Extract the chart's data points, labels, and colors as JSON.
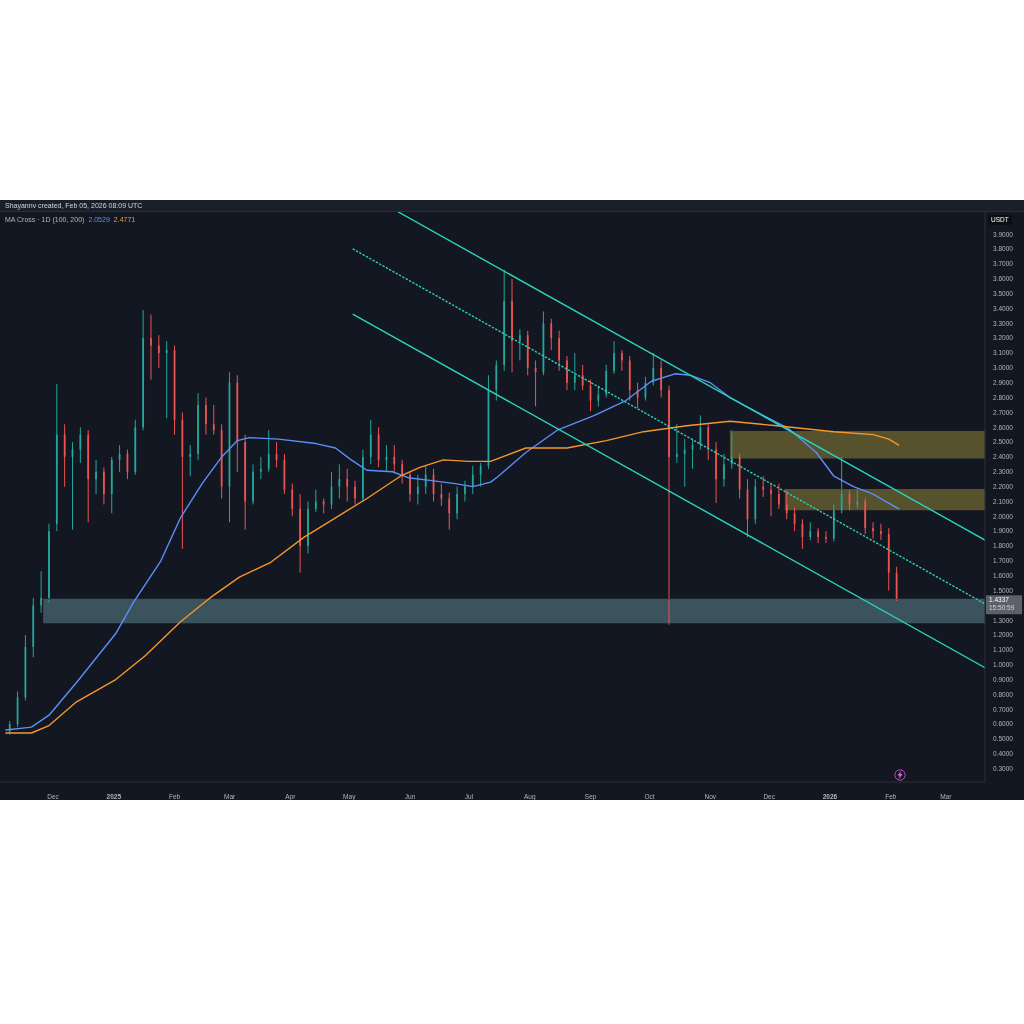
{
  "chart_data": {
    "type": "candlestick",
    "title": "Shayannv created, Feb 05, 2026 08:09 UTC",
    "legend_title": "MA Cross · 1D (100, 200)",
    "legend": "top left",
    "ylabel": "USDT",
    "annotations": [
      "1.4337",
      "15:50:59"
    ],
    "xlim": [
      "2024-11-04",
      "2026-03-21"
    ],
    "xticks": [
      {
        "value": "2024-12-01",
        "label": "Dec"
      },
      {
        "value": "2025-01-01",
        "label": "2025"
      },
      {
        "value": "2025-02-01",
        "label": "Feb"
      },
      {
        "value": "2025-03-01",
        "label": "Mar"
      },
      {
        "value": "2025-04-01",
        "label": "Apr"
      },
      {
        "value": "2025-05-01",
        "label": "May"
      },
      {
        "value": "2025-06-01",
        "label": "Jun"
      },
      {
        "value": "2025-07-01",
        "label": "Jul"
      },
      {
        "value": "2025-08-01",
        "label": "Aug"
      },
      {
        "value": "2025-09-01",
        "label": "Sep"
      },
      {
        "value": "2025-10-01",
        "label": "Oct"
      },
      {
        "value": "2025-11-01",
        "label": "Nov"
      },
      {
        "value": "2025-12-01",
        "label": "Dec"
      },
      {
        "value": "2026-01-01",
        "label": "2026"
      },
      {
        "value": "2026-02-01",
        "label": "Feb"
      },
      {
        "value": "2026-03-01",
        "label": "Mar"
      }
    ],
    "ylim": [
      0.21,
      4.05
    ],
    "yticks": [
      {
        "value": 0.3,
        "label": "0.3000"
      },
      {
        "value": 0.4,
        "label": "0.4000"
      },
      {
        "value": 0.5,
        "label": "0.5000"
      },
      {
        "value": 0.6,
        "label": "0.6000"
      },
      {
        "value": 0.7,
        "label": "0.7000"
      },
      {
        "value": 0.8,
        "label": "0.8000"
      },
      {
        "value": 0.9,
        "label": "0.9000"
      },
      {
        "value": 1.0,
        "label": "1.0000"
      },
      {
        "value": 1.1,
        "label": "1.1000"
      },
      {
        "value": 1.2,
        "label": "1.2000"
      },
      {
        "value": 1.3,
        "label": "1.3000"
      },
      {
        "value": 1.5,
        "label": "1.5000"
      },
      {
        "value": 1.6,
        "label": "1.6000"
      },
      {
        "value": 1.7,
        "label": "1.7000"
      },
      {
        "value": 1.8,
        "label": "1.8000"
      },
      {
        "value": 1.9,
        "label": "1.9000"
      },
      {
        "value": 2.0,
        "label": "2.0000"
      },
      {
        "value": 2.1,
        "label": "2.1000"
      },
      {
        "value": 2.2,
        "label": "2.2000"
      },
      {
        "value": 2.3,
        "label": "2.3000"
      },
      {
        "value": 2.4,
        "label": "2.4000"
      },
      {
        "value": 2.5,
        "label": "2.5000"
      },
      {
        "value": 2.6,
        "label": "2.6000"
      },
      {
        "value": 2.7,
        "label": "2.7000"
      },
      {
        "value": 2.8,
        "label": "2.8000"
      },
      {
        "value": 2.9,
        "label": "2.9000"
      },
      {
        "value": 3.0,
        "label": "3.0000"
      },
      {
        "value": 3.1,
        "label": "3.1000"
      },
      {
        "value": 3.2,
        "label": "3.2000"
      },
      {
        "value": 3.3,
        "label": "3.3000"
      },
      {
        "value": 3.4,
        "label": "3.4000"
      },
      {
        "value": 3.5,
        "label": "3.5000"
      },
      {
        "value": 3.6,
        "label": "3.6000"
      },
      {
        "value": 3.7,
        "label": "3.7000"
      },
      {
        "value": 3.8,
        "label": "3.8000"
      },
      {
        "value": 3.9,
        "label": "3.9000"
      }
    ],
    "x": [
      "2024-11-09",
      "2024-11-13",
      "2024-11-17",
      "2024-11-21",
      "2024-11-25",
      "2024-11-29",
      "2024-12-03",
      "2024-12-07",
      "2024-12-11",
      "2024-12-15",
      "2024-12-19",
      "2024-12-23",
      "2024-12-27",
      "2024-12-31",
      "2025-01-04",
      "2025-01-08",
      "2025-01-12",
      "2025-01-16",
      "2025-01-20",
      "2025-01-24",
      "2025-01-28",
      "2025-02-01",
      "2025-02-05",
      "2025-02-09",
      "2025-02-13",
      "2025-02-17",
      "2025-02-21",
      "2025-02-25",
      "2025-03-01",
      "2025-03-05",
      "2025-03-09",
      "2025-03-13",
      "2025-03-17",
      "2025-03-21",
      "2025-03-25",
      "2025-03-29",
      "2025-04-02",
      "2025-04-06",
      "2025-04-10",
      "2025-04-14",
      "2025-04-18",
      "2025-04-22",
      "2025-04-26",
      "2025-04-30",
      "2025-05-04",
      "2025-05-08",
      "2025-05-12",
      "2025-05-16",
      "2025-05-20",
      "2025-05-24",
      "2025-05-28",
      "2025-06-01",
      "2025-06-05",
      "2025-06-09",
      "2025-06-13",
      "2025-06-17",
      "2025-06-21",
      "2025-06-25",
      "2025-06-29",
      "2025-07-03",
      "2025-07-07",
      "2025-07-11",
      "2025-07-15",
      "2025-07-19",
      "2025-07-23",
      "2025-07-27",
      "2025-07-31",
      "2025-08-04",
      "2025-08-08",
      "2025-08-12",
      "2025-08-16",
      "2025-08-20",
      "2025-08-24",
      "2025-08-28",
      "2025-09-01",
      "2025-09-05",
      "2025-09-09",
      "2025-09-13",
      "2025-09-17",
      "2025-09-21",
      "2025-09-25",
      "2025-09-29",
      "2025-10-03",
      "2025-10-07",
      "2025-10-11",
      "2025-10-15",
      "2025-10-19",
      "2025-10-23",
      "2025-10-27",
      "2025-10-31",
      "2025-11-04",
      "2025-11-08",
      "2025-11-12",
      "2025-11-16",
      "2025-11-20",
      "2025-11-24",
      "2025-11-28",
      "2025-12-02",
      "2025-12-06",
      "2025-12-10",
      "2025-12-14",
      "2025-12-18",
      "2025-12-22",
      "2025-12-26",
      "2025-12-30",
      "2026-01-03",
      "2026-01-07",
      "2026-01-11",
      "2026-01-15",
      "2026-01-19",
      "2026-01-23",
      "2026-01-27",
      "2026-01-31",
      "2026-02-04"
    ],
    "ohlc": [
      [
        0.55,
        0.62,
        0.53,
        0.6
      ],
      [
        0.6,
        0.82,
        0.58,
        0.78
      ],
      [
        0.78,
        1.2,
        0.76,
        1.12
      ],
      [
        1.12,
        1.45,
        1.05,
        1.4
      ],
      [
        1.4,
        1.63,
        1.35,
        1.45
      ],
      [
        1.45,
        1.95,
        1.42,
        1.9
      ],
      [
        1.95,
        2.89,
        1.9,
        2.55
      ],
      [
        2.55,
        2.62,
        2.2,
        2.4
      ],
      [
        2.4,
        2.5,
        1.91,
        2.45
      ],
      [
        2.45,
        2.6,
        2.36,
        2.55
      ],
      [
        2.55,
        2.58,
        1.96,
        2.25
      ],
      [
        2.25,
        2.38,
        2.15,
        2.3
      ],
      [
        2.3,
        2.33,
        2.08,
        2.15
      ],
      [
        2.15,
        2.4,
        2.02,
        2.38
      ],
      [
        2.38,
        2.48,
        2.3,
        2.42
      ],
      [
        2.42,
        2.45,
        2.25,
        2.3
      ],
      [
        2.3,
        2.65,
        2.28,
        2.6
      ],
      [
        2.6,
        3.39,
        2.58,
        3.2
      ],
      [
        3.2,
        3.36,
        2.92,
        3.15
      ],
      [
        3.15,
        3.22,
        3.0,
        3.1
      ],
      [
        3.1,
        3.18,
        2.66,
        3.12
      ],
      [
        3.12,
        3.15,
        2.55,
        2.65
      ],
      [
        2.65,
        2.7,
        1.78,
        2.4
      ],
      [
        2.4,
        2.48,
        2.27,
        2.42
      ],
      [
        2.42,
        2.83,
        2.38,
        2.75
      ],
      [
        2.75,
        2.8,
        2.55,
        2.62
      ],
      [
        2.62,
        2.75,
        2.55,
        2.58
      ],
      [
        2.58,
        2.62,
        2.12,
        2.2
      ],
      [
        2.2,
        2.97,
        1.96,
        2.9
      ],
      [
        2.9,
        2.95,
        2.3,
        2.5
      ],
      [
        2.5,
        2.55,
        1.91,
        2.1
      ],
      [
        2.1,
        2.35,
        2.08,
        2.3
      ],
      [
        2.3,
        2.4,
        2.25,
        2.32
      ],
      [
        2.32,
        2.58,
        2.3,
        2.42
      ],
      [
        2.42,
        2.5,
        2.33,
        2.38
      ],
      [
        2.38,
        2.42,
        2.15,
        2.18
      ],
      [
        2.18,
        2.22,
        2.0,
        2.05
      ],
      [
        2.05,
        2.15,
        1.62,
        1.8
      ],
      [
        1.8,
        2.1,
        1.75,
        2.05
      ],
      [
        2.05,
        2.18,
        2.03,
        2.1
      ],
      [
        2.1,
        2.12,
        2.02,
        2.08
      ],
      [
        2.08,
        2.3,
        2.05,
        2.2
      ],
      [
        2.2,
        2.35,
        2.12,
        2.25
      ],
      [
        2.25,
        2.32,
        2.1,
        2.2
      ],
      [
        2.2,
        2.24,
        2.08,
        2.12
      ],
      [
        2.12,
        2.45,
        2.1,
        2.4
      ],
      [
        2.4,
        2.65,
        2.35,
        2.55
      ],
      [
        2.55,
        2.6,
        2.33,
        2.38
      ],
      [
        2.38,
        2.48,
        2.3,
        2.4
      ],
      [
        2.4,
        2.48,
        2.3,
        2.35
      ],
      [
        2.35,
        2.38,
        2.22,
        2.28
      ],
      [
        2.28,
        2.3,
        2.1,
        2.15
      ],
      [
        2.15,
        2.28,
        2.08,
        2.2
      ],
      [
        2.2,
        2.34,
        2.15,
        2.28
      ],
      [
        2.28,
        2.32,
        2.1,
        2.15
      ],
      [
        2.15,
        2.22,
        2.07,
        2.12
      ],
      [
        2.12,
        2.16,
        1.91,
        2.02
      ],
      [
        2.02,
        2.2,
        1.98,
        2.15
      ],
      [
        2.15,
        2.24,
        2.1,
        2.2
      ],
      [
        2.2,
        2.34,
        2.15,
        2.28
      ],
      [
        2.28,
        2.36,
        2.2,
        2.34
      ],
      [
        2.34,
        2.95,
        2.32,
        2.85
      ],
      [
        2.85,
        3.05,
        2.78,
        3.02
      ],
      [
        3.02,
        3.66,
        2.98,
        3.45
      ],
      [
        3.45,
        3.6,
        2.97,
        3.18
      ],
      [
        3.18,
        3.26,
        3.05,
        3.22
      ],
      [
        3.22,
        3.25,
        2.95,
        3.0
      ],
      [
        3.0,
        3.05,
        2.74,
        2.97
      ],
      [
        2.97,
        3.38,
        2.95,
        3.3
      ],
      [
        3.3,
        3.33,
        3.12,
        3.2
      ],
      [
        3.2,
        3.25,
        2.98,
        3.05
      ],
      [
        3.05,
        3.08,
        2.85,
        2.9
      ],
      [
        2.9,
        3.1,
        2.85,
        2.95
      ],
      [
        2.95,
        3.02,
        2.85,
        2.88
      ],
      [
        2.88,
        2.92,
        2.71,
        2.78
      ],
      [
        2.78,
        2.88,
        2.74,
        2.82
      ],
      [
        2.82,
        3.02,
        2.8,
        2.98
      ],
      [
        2.98,
        3.18,
        2.96,
        3.1
      ],
      [
        3.1,
        3.12,
        2.98,
        3.05
      ],
      [
        3.05,
        3.08,
        2.78,
        2.85
      ],
      [
        2.85,
        2.9,
        2.73,
        2.8
      ],
      [
        2.8,
        2.94,
        2.78,
        2.9
      ],
      [
        2.9,
        3.1,
        2.88,
        3.0
      ],
      [
        3.0,
        3.05,
        2.8,
        2.85
      ],
      [
        2.85,
        2.88,
        1.27,
        2.4
      ],
      [
        2.4,
        2.62,
        2.36,
        2.42
      ],
      [
        2.42,
        2.52,
        2.2,
        2.45
      ],
      [
        2.45,
        2.52,
        2.32,
        2.48
      ],
      [
        2.48,
        2.68,
        2.45,
        2.6
      ],
      [
        2.6,
        2.62,
        2.38,
        2.45
      ],
      [
        2.45,
        2.5,
        2.09,
        2.25
      ],
      [
        2.25,
        2.42,
        2.2,
        2.35
      ],
      [
        2.35,
        2.58,
        2.32,
        2.4
      ],
      [
        2.4,
        2.42,
        2.12,
        2.18
      ],
      [
        2.18,
        2.25,
        1.86,
        1.98
      ],
      [
        1.98,
        2.25,
        1.95,
        2.2
      ],
      [
        2.2,
        2.27,
        2.13,
        2.18
      ],
      [
        2.18,
        2.22,
        2.0,
        2.15
      ],
      [
        2.15,
        2.22,
        2.05,
        2.08
      ],
      [
        2.08,
        2.18,
        1.98,
        2.02
      ],
      [
        2.02,
        2.06,
        1.9,
        1.95
      ],
      [
        1.95,
        1.98,
        1.78,
        1.86
      ],
      [
        1.86,
        1.96,
        1.84,
        1.9
      ],
      [
        1.9,
        1.92,
        1.82,
        1.86
      ],
      [
        1.86,
        1.9,
        1.82,
        1.85
      ],
      [
        1.85,
        2.08,
        1.83,
        2.04
      ],
      [
        2.04,
        2.4,
        2.02,
        2.15
      ],
      [
        2.15,
        2.18,
        2.04,
        2.08
      ],
      [
        2.08,
        2.19,
        2.05,
        2.1
      ],
      [
        2.1,
        2.12,
        1.88,
        1.92
      ],
      [
        1.92,
        1.96,
        1.85,
        1.9
      ],
      [
        1.9,
        1.95,
        1.84,
        1.88
      ],
      [
        1.88,
        1.92,
        1.5,
        1.62
      ],
      [
        1.62,
        1.66,
        1.43,
        1.4337
      ]
    ],
    "colors": [
      "#26a69a",
      "#26a69a",
      "#26a69a",
      "#26a69a",
      "#26a69a",
      "#26a69a",
      "#26a69a",
      "#ef5350",
      "#26a69a",
      "#26a69a",
      "#ef5350",
      "#26a69a",
      "#ef5350",
      "#26a69a",
      "#26a69a",
      "#ef5350",
      "#26a69a",
      "#26a69a",
      "#ef5350",
      "#ef5350",
      "#26a69a",
      "#ef5350",
      "#ef5350",
      "#26a69a",
      "#26a69a",
      "#ef5350",
      "#ef5350",
      "#ef5350",
      "#26a69a",
      "#ef5350",
      "#ef5350",
      "#26a69a",
      "#26a69a",
      "#26a69a",
      "#ef5350",
      "#ef5350",
      "#ef5350",
      "#ef5350",
      "#26a69a",
      "#26a69a",
      "#ef5350",
      "#26a69a",
      "#26a69a",
      "#ef5350",
      "#ef5350",
      "#26a69a",
      "#26a69a",
      "#ef5350",
      "#26a69a",
      "#ef5350",
      "#ef5350",
      "#ef5350",
      "#26a69a",
      "#26a69a",
      "#ef5350",
      "#ef5350",
      "#ef5350",
      "#26a69a",
      "#26a69a",
      "#26a69a",
      "#26a69a",
      "#26a69a",
      "#26a69a",
      "#26a69a",
      "#ef5350",
      "#26a69a",
      "#ef5350",
      "#ef5350",
      "#26a69a",
      "#ef5350",
      "#ef5350",
      "#ef5350",
      "#26a69a",
      "#ef5350",
      "#ef5350",
      "#26a69a",
      "#26a69a",
      "#26a69a",
      "#ef5350",
      "#ef5350",
      "#ef5350",
      "#26a69a",
      "#26a69a",
      "#ef5350",
      "#ef5350",
      "#26a69a",
      "#26a69a",
      "#26a69a",
      "#26a69a",
      "#ef5350",
      "#ef5350",
      "#26a69a",
      "#26a69a",
      "#ef5350",
      "#ef5350",
      "#26a69a",
      "#ef5350",
      "#ef5350",
      "#ef5350",
      "#ef5350",
      "#ef5350",
      "#ef5350",
      "#26a69a",
      "#ef5350",
      "#ef5350",
      "#26a69a",
      "#26a69a",
      "#ef5350",
      "#26a69a",
      "#ef5350",
      "#ef5350",
      "#ef5350",
      "#ef5350",
      "#ef5350"
    ],
    "series": [
      {
        "type": "line",
        "color": "#3a535d",
        "line_style": "solid",
        "x": [
          "2024-11-26",
          "2026-03-21"
        ],
        "values": [
          1.44,
          1.44
        ],
        "lower": [
          1.28,
          1.28
        ],
        "upper": [
          1.44,
          1.44
        ]
      },
      {
        "type": "line",
        "color": "#57522e",
        "line_style": "solid",
        "x": [
          "2025-11-11",
          "2026-03-21"
        ],
        "values": [
          2.57,
          2.57
        ],
        "lower": [
          2.39,
          2.39
        ],
        "upper": [
          2.57,
          2.57
        ]
      },
      {
        "type": "line",
        "color": "#57522e",
        "line_style": "solid",
        "x": [
          "2025-12-09",
          "2026-03-21"
        ],
        "values": [
          2.18,
          2.18
        ],
        "lower": [
          2.04,
          2.04
        ],
        "upper": [
          2.18,
          2.18
        ]
      },
      {
        "type": "line",
        "name": "2.0529",
        "color": "#5b8ff9",
        "line_style": "solid",
        "x": [
          "2024-11-07",
          "2024-11-20",
          "2024-11-29",
          "2024-12-13",
          "2025-01-02",
          "2025-01-11",
          "2025-01-25",
          "2025-02-04",
          "2025-02-15",
          "2025-02-25",
          "2025-03-05",
          "2025-03-11",
          "2025-03-26",
          "2025-04-14",
          "2025-04-24",
          "2025-05-02",
          "2025-05-10",
          "2025-05-23",
          "2025-05-31",
          "2025-06-12",
          "2025-06-24",
          "2025-07-03",
          "2025-07-12",
          "2025-07-16",
          "2025-07-30",
          "2025-08-15",
          "2025-09-03",
          "2025-09-19",
          "2025-10-02",
          "2025-10-14",
          "2025-10-22",
          "2025-11-01",
          "2025-11-11",
          "2025-11-25",
          "2025-12-11",
          "2025-12-25",
          "2026-01-03",
          "2026-01-13",
          "2026-01-23",
          "2026-02-05"
        ],
        "values": [
          0.56,
          0.58,
          0.66,
          0.88,
          1.21,
          1.42,
          1.7,
          1.99,
          2.22,
          2.4,
          2.51,
          2.53,
          2.52,
          2.49,
          2.46,
          2.38,
          2.31,
          2.3,
          2.26,
          2.24,
          2.22,
          2.2,
          2.23,
          2.27,
          2.43,
          2.58,
          2.68,
          2.78,
          2.91,
          2.96,
          2.95,
          2.9,
          2.8,
          2.7,
          2.59,
          2.43,
          2.27,
          2.2,
          2.15,
          2.05
        ]
      },
      {
        "type": "line",
        "name": "2.4771",
        "color": "#f7962a",
        "line_style": "solid",
        "x": [
          "2024-11-07",
          "2024-11-20",
          "2024-11-29",
          "2024-12-13",
          "2025-01-02",
          "2025-01-17",
          "2025-02-04",
          "2025-02-19",
          "2025-03-06",
          "2025-03-22",
          "2025-04-08",
          "2025-04-24",
          "2025-05-10",
          "2025-05-27",
          "2025-06-06",
          "2025-06-18",
          "2025-07-01",
          "2025-07-12",
          "2025-07-30",
          "2025-08-20",
          "2025-09-09",
          "2025-09-28",
          "2025-10-20",
          "2025-11-11",
          "2025-12-05",
          "2026-01-03",
          "2026-01-23",
          "2026-01-31",
          "2026-02-05"
        ],
        "values": [
          0.54,
          0.54,
          0.59,
          0.75,
          0.9,
          1.06,
          1.29,
          1.45,
          1.59,
          1.69,
          1.86,
          1.99,
          2.12,
          2.27,
          2.33,
          2.38,
          2.37,
          2.37,
          2.46,
          2.46,
          2.51,
          2.57,
          2.61,
          2.64,
          2.61,
          2.57,
          2.55,
          2.52,
          2.48
        ]
      },
      {
        "type": "line",
        "color": "#2ad4be",
        "line_style": "solid",
        "x": [
          "2025-05-26",
          "2026-03-21"
        ],
        "values": [
          4.05,
          1.84
        ]
      },
      {
        "type": "line",
        "color": "#2ad4be",
        "line_style": "dotted",
        "x": [
          "2025-05-03",
          "2026-03-21"
        ],
        "values": [
          3.8,
          1.41
        ]
      },
      {
        "type": "line",
        "color": "#2ad4be",
        "line_style": "solid",
        "x": [
          "2025-05-03",
          "2026-03-21"
        ],
        "values": [
          3.36,
          0.98
        ]
      }
    ]
  }
}
